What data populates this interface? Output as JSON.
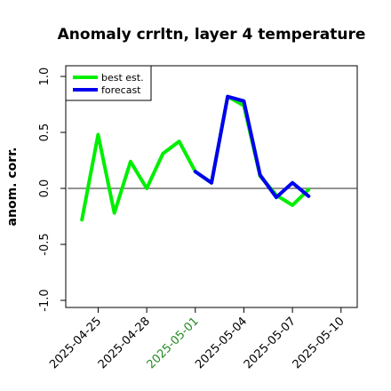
{
  "chart_data": {
    "type": "line",
    "title": "Anomaly crrltn, layer 4 temperature",
    "xlabel": "",
    "ylabel": "anom. corr.",
    "ylim": [
      -1.0,
      1.0
    ],
    "xlim": [
      "2025-04-23",
      "2025-05-11"
    ],
    "x_ticks": [
      "2025-04-25",
      "2025-04-28",
      "2025-05-01",
      "2025-05-04",
      "2025-05-07",
      "2025-05-10"
    ],
    "y_ticks": [
      "-1.0",
      "-0.5",
      "0.0",
      "0.5",
      "1.0"
    ],
    "highlight_tick": "2025-05-01",
    "highlight_color": "#228B22",
    "legend_position": "top-left",
    "grid": false,
    "reference_line": 0,
    "series": [
      {
        "name": "best est.",
        "color": "#00ee00",
        "x": [
          "2025-04-24",
          "2025-04-25",
          "2025-04-26",
          "2025-04-27",
          "2025-04-28",
          "2025-04-29",
          "2025-04-30",
          "2025-05-01",
          "2025-05-02",
          "2025-05-03",
          "2025-05-04",
          "2025-05-05",
          "2025-05-06",
          "2025-05-07",
          "2025-05-08"
        ],
        "values": [
          -0.28,
          0.48,
          -0.22,
          0.24,
          0.0,
          0.31,
          0.42,
          0.15,
          0.05,
          0.82,
          0.74,
          0.11,
          -0.06,
          -0.15,
          -0.01
        ]
      },
      {
        "name": "forecast",
        "color": "#0000ee",
        "x": [
          "2025-05-01",
          "2025-05-02",
          "2025-05-03",
          "2025-05-04",
          "2025-05-05",
          "2025-05-06",
          "2025-05-07",
          "2025-05-08"
        ],
        "values": [
          0.15,
          0.05,
          0.82,
          0.78,
          0.12,
          -0.08,
          0.05,
          -0.07
        ]
      }
    ]
  }
}
